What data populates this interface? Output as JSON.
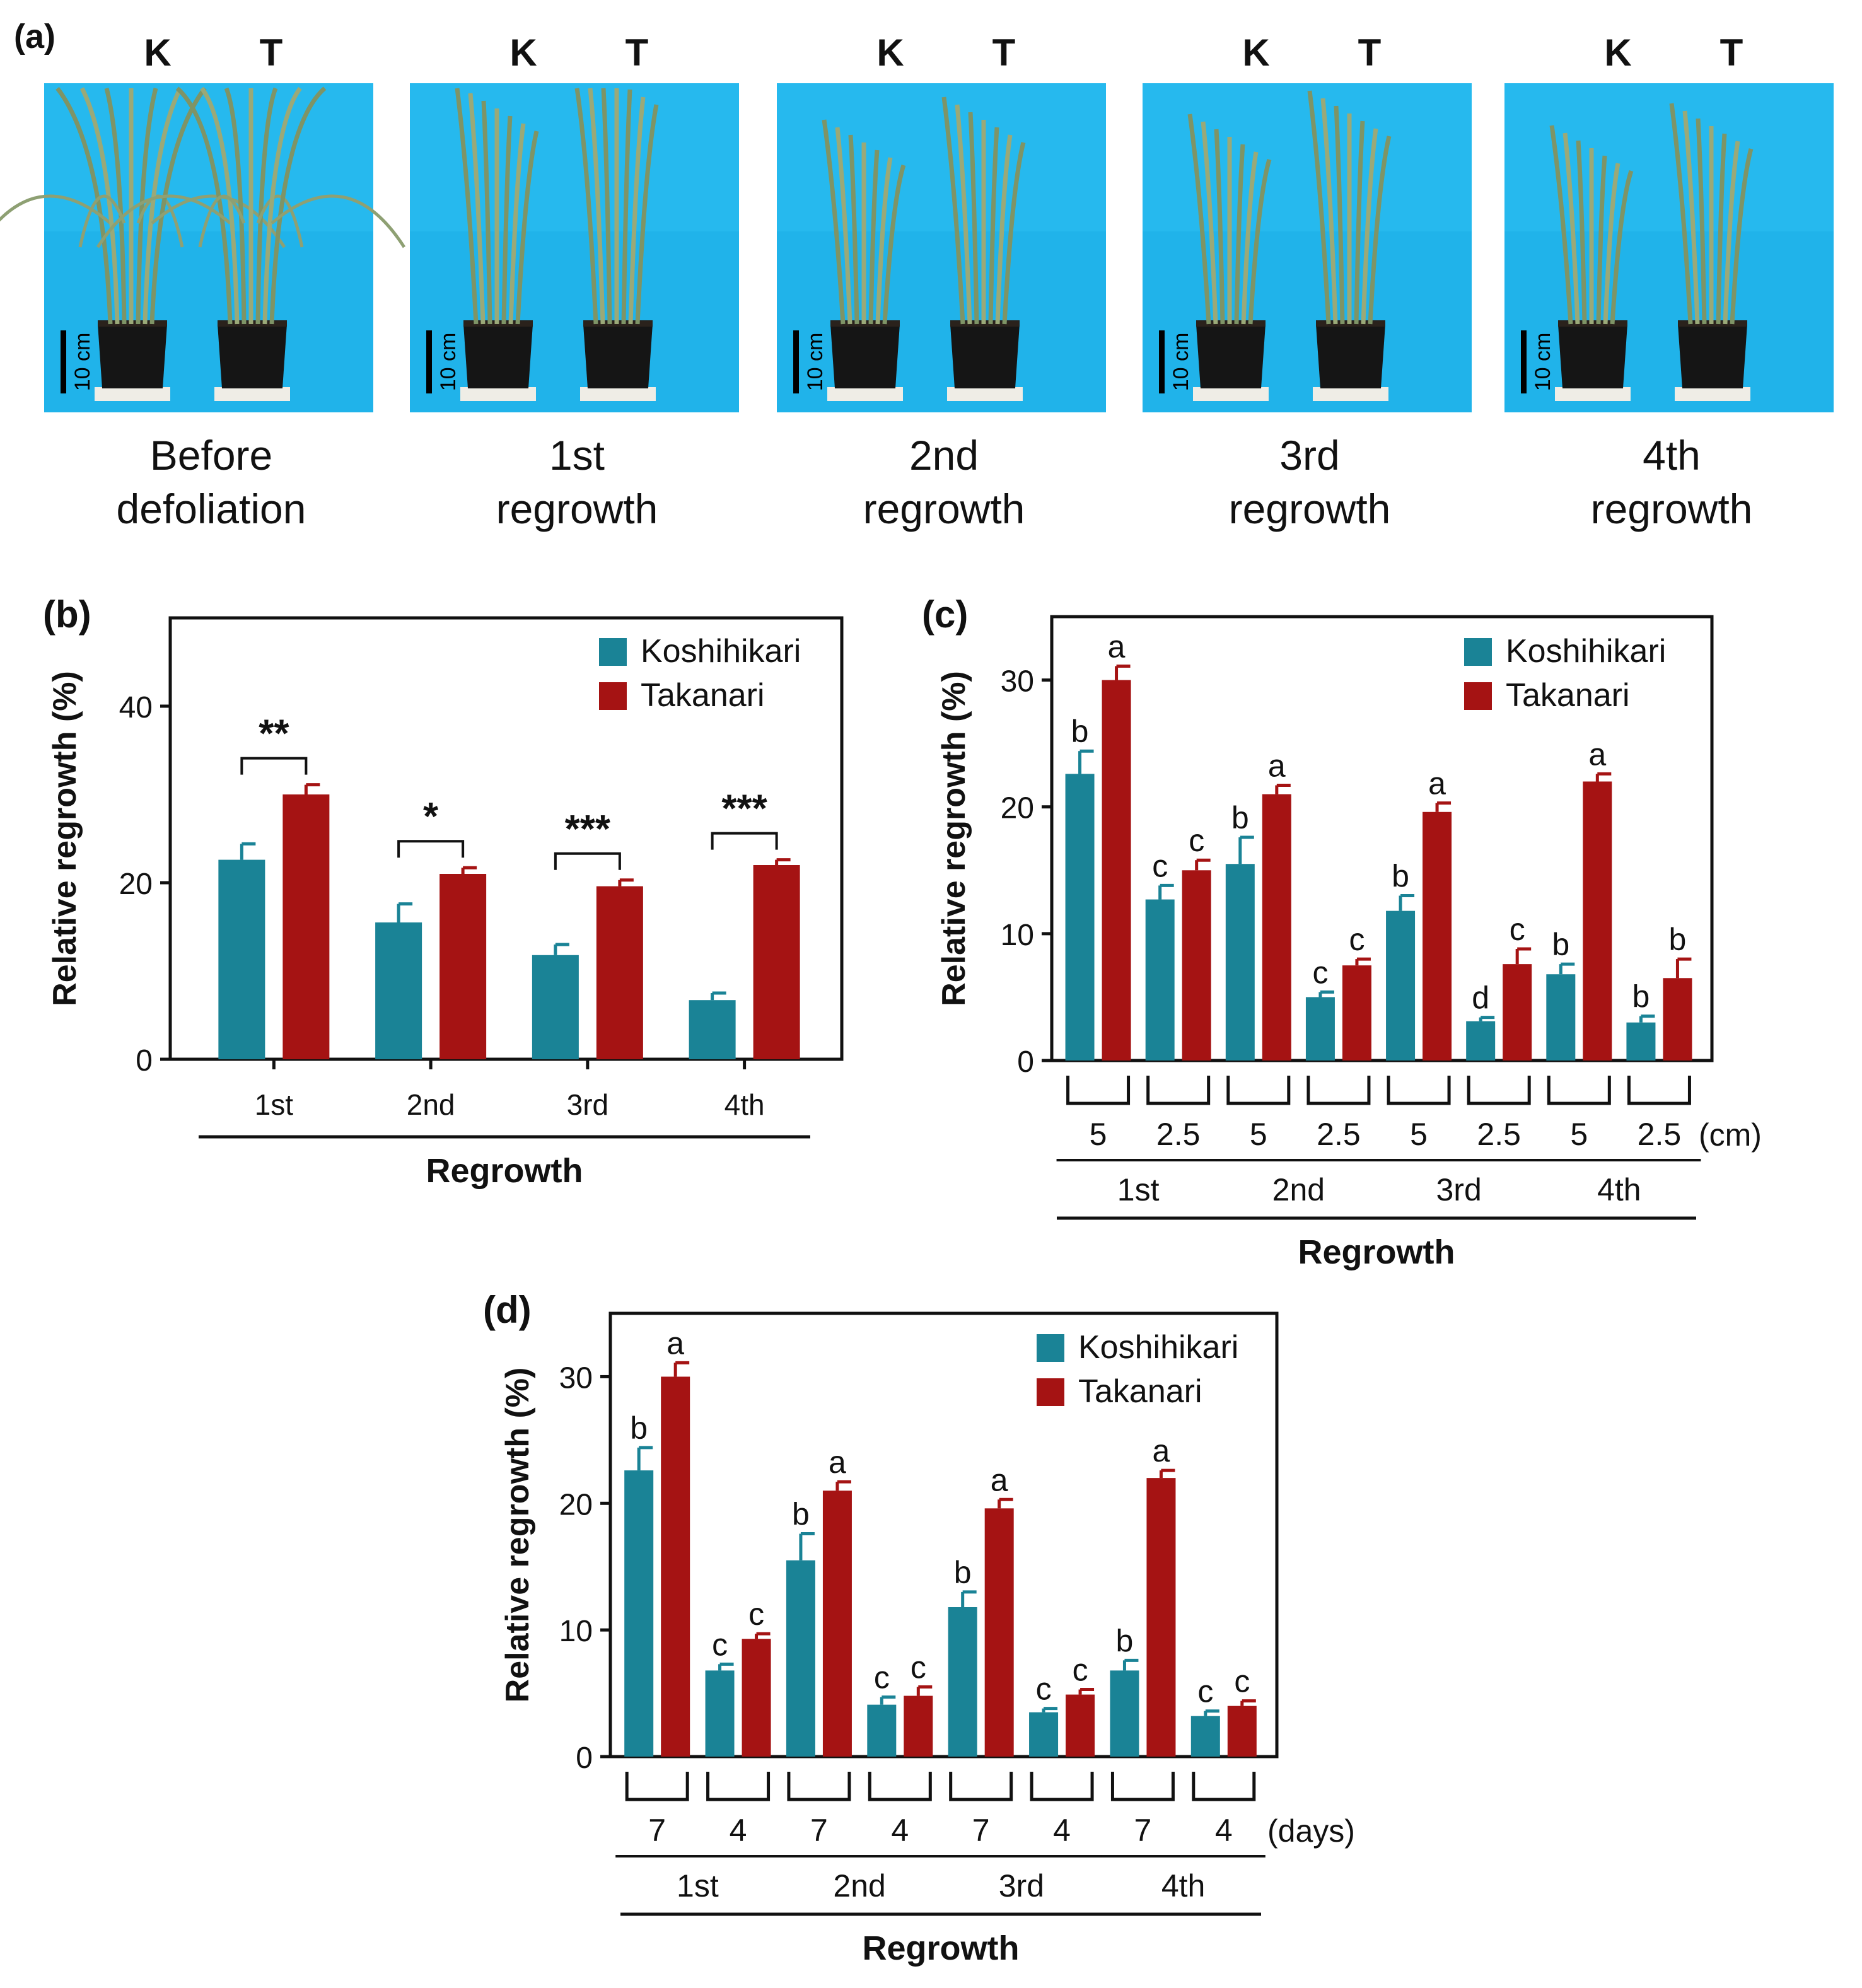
{
  "panel_a": {
    "label": "(a)",
    "plant_labels": [
      "K",
      "T"
    ],
    "scale_label": "10 cm",
    "photos": [
      {
        "caption_line1": "Before",
        "caption_line2": "defoliation"
      },
      {
        "caption_line1": "1st",
        "caption_line2": "regrowth"
      },
      {
        "caption_line1": "2nd",
        "caption_line2": "regrowth"
      },
      {
        "caption_line1": "3rd",
        "caption_line2": "regrowth"
      },
      {
        "caption_line1": "4th",
        "caption_line2": "regrowth"
      }
    ]
  },
  "colors": {
    "koshihikari": "#1a8396",
    "takanari": "#a51313"
  },
  "chart_data": [
    {
      "id": "b",
      "label": "(b)",
      "type": "bar",
      "ylabel": "Relative regrowth (%)",
      "xlabel": "Regrowth",
      "ylim": [
        0,
        50
      ],
      "yticks": [
        0,
        20,
        40
      ],
      "categories": [
        "1st",
        "2nd",
        "3rd",
        "4th"
      ],
      "legend": [
        "Koshihikari",
        "Takanari"
      ],
      "series": [
        {
          "name": "Koshihikari",
          "values": [
            22.6,
            15.5,
            11.8,
            6.7
          ],
          "errors": [
            1.8,
            2.1,
            1.2,
            0.8
          ]
        },
        {
          "name": "Takanari",
          "values": [
            30.0,
            21.0,
            19.6,
            22.0
          ],
          "errors": [
            1.1,
            0.7,
            0.7,
            0.6
          ]
        }
      ],
      "significance": [
        "**",
        "*",
        "***",
        "***"
      ]
    },
    {
      "id": "c",
      "label": "(c)",
      "type": "bar",
      "ylabel": "Relative regrowth (%)",
      "xlabel": "Regrowth",
      "ylim": [
        0,
        35
      ],
      "yticks": [
        0,
        10,
        20,
        30
      ],
      "categories": [
        "1st",
        "2nd",
        "3rd",
        "4th"
      ],
      "subgroups": [
        "5",
        "2.5"
      ],
      "unit": "(cm)",
      "legend": [
        "Koshihikari",
        "Takanari"
      ],
      "series": [
        {
          "name": "Koshihikari",
          "values": [
            [
              22.6,
              12.7
            ],
            [
              15.5,
              5.0
            ],
            [
              11.8,
              3.1
            ],
            [
              6.8,
              3.0
            ]
          ],
          "errors": [
            [
              1.8,
              1.1
            ],
            [
              2.1,
              0.4
            ],
            [
              1.2,
              0.3
            ],
            [
              0.8,
              0.5
            ]
          ],
          "letters": [
            [
              "b",
              "c"
            ],
            [
              "b",
              "c"
            ],
            [
              "b",
              "d"
            ],
            [
              "b",
              "b"
            ]
          ]
        },
        {
          "name": "Takanari",
          "values": [
            [
              30.0,
              15.0
            ],
            [
              21.0,
              7.5
            ],
            [
              19.6,
              7.6
            ],
            [
              22.0,
              6.5
            ]
          ],
          "errors": [
            [
              1.1,
              0.8
            ],
            [
              0.7,
              0.5
            ],
            [
              0.7,
              1.2
            ],
            [
              0.6,
              1.5
            ]
          ],
          "letters": [
            [
              "a",
              "c"
            ],
            [
              "a",
              "c"
            ],
            [
              "a",
              "c"
            ],
            [
              "a",
              "b"
            ]
          ]
        }
      ]
    },
    {
      "id": "d",
      "label": "(d)",
      "type": "bar",
      "ylabel": "Relative regrowth (%)",
      "xlabel": "Regrowth",
      "ylim": [
        0,
        35
      ],
      "yticks": [
        0,
        10,
        20,
        30
      ],
      "categories": [
        "1st",
        "2nd",
        "3rd",
        "4th"
      ],
      "subgroups": [
        "7",
        "4"
      ],
      "unit": "(days)",
      "legend": [
        "Koshihikari",
        "Takanari"
      ],
      "series": [
        {
          "name": "Koshihikari",
          "values": [
            [
              22.6,
              6.8
            ],
            [
              15.5,
              4.1
            ],
            [
              11.8,
              3.5
            ],
            [
              6.8,
              3.2
            ]
          ],
          "errors": [
            [
              1.8,
              0.5
            ],
            [
              2.1,
              0.6
            ],
            [
              1.2,
              0.3
            ],
            [
              0.8,
              0.4
            ]
          ],
          "letters": [
            [
              "b",
              "c"
            ],
            [
              "b",
              "c"
            ],
            [
              "b",
              "c"
            ],
            [
              "b",
              "c"
            ]
          ]
        },
        {
          "name": "Takanari",
          "values": [
            [
              30.0,
              9.3
            ],
            [
              21.0,
              4.8
            ],
            [
              19.6,
              4.9
            ],
            [
              22.0,
              4.0
            ]
          ],
          "errors": [
            [
              1.1,
              0.4
            ],
            [
              0.7,
              0.7
            ],
            [
              0.7,
              0.4
            ],
            [
              0.6,
              0.4
            ]
          ],
          "letters": [
            [
              "a",
              "c"
            ],
            [
              "a",
              "c"
            ],
            [
              "a",
              "c"
            ],
            [
              "a",
              "c"
            ]
          ]
        }
      ]
    }
  ]
}
